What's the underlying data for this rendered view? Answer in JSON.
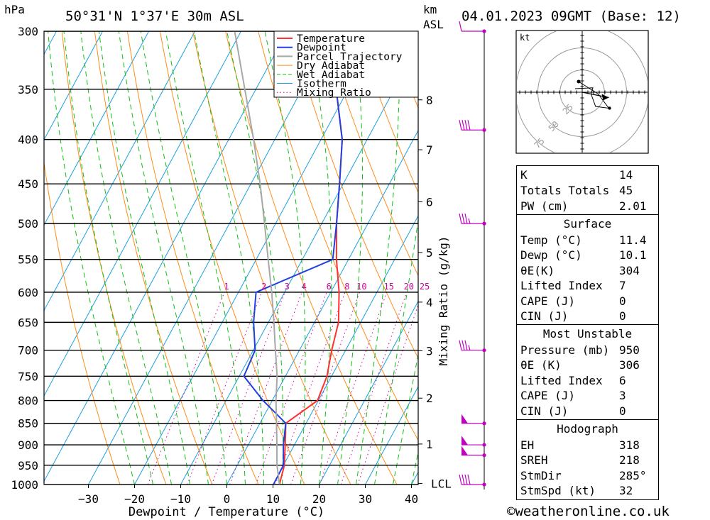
{
  "header": {
    "location": "50°31'N 1°37'E 30m ASL",
    "datetime": "04.01.2023 09GMT (Base: 12)",
    "left_unit": "hPa",
    "right_unit_top": "km",
    "right_unit_bottom": "ASL"
  },
  "footer": {
    "copyright": "©weatheronline.co.uk"
  },
  "chart_data": {
    "type": "line",
    "xlabel": "Dewpoint / Temperature (°C)",
    "ylabel": "hPa",
    "mixing_ratio_label": "Mixing Ratio (g/kg)",
    "x_ticks": [
      -30,
      -20,
      -10,
      0,
      10,
      20,
      30,
      40
    ],
    "pressure_ticks": [
      300,
      350,
      400,
      450,
      500,
      550,
      600,
      650,
      700,
      750,
      800,
      850,
      900,
      950,
      1000
    ],
    "km_ticks": [
      {
        "label": "8",
        "p": 360
      },
      {
        "label": "7",
        "p": 411
      },
      {
        "label": "6",
        "p": 472
      },
      {
        "label": "5",
        "p": 540
      },
      {
        "label": "4",
        "p": 616
      },
      {
        "label": "3",
        "p": 701
      },
      {
        "label": "2",
        "p": 795
      },
      {
        "label": "1",
        "p": 898
      },
      {
        "label": "LCL",
        "p": 997
      }
    ],
    "mixing_ratio_values": [
      1,
      2,
      3,
      4,
      6,
      8,
      10,
      15,
      20,
      25
    ],
    "legend": [
      "Temperature",
      "Dewpoint",
      "Parcel Trajectory",
      "Dry Adiabat",
      "Wet Adiabat",
      "Isotherm",
      "Mixing Ratio"
    ],
    "colors": {
      "temperature": "#ff3030",
      "dewpoint": "#2040e0",
      "parcel": "#a8a8a8",
      "dry_adiabat": "#ff8c1a",
      "wet_adiabat": "#10c010",
      "isotherm": "#1aa0e0",
      "mixing_ratio": "#d000a0",
      "wind_barb": "#c000c0"
    },
    "series": [
      {
        "name": "Temperature",
        "points": [
          [
            1000,
            11.4
          ],
          [
            950,
            10.2
          ],
          [
            900,
            8.0
          ],
          [
            850,
            5.6
          ],
          [
            800,
            9.8
          ],
          [
            750,
            9.0
          ],
          [
            700,
            7.0
          ],
          [
            650,
            5.2
          ],
          [
            600,
            1.8
          ],
          [
            550,
            -2.6
          ],
          [
            500,
            -6.8
          ],
          [
            450,
            -10.8
          ],
          [
            400,
            -15.4
          ],
          [
            350,
            -22.6
          ],
          [
            300,
            -33.8
          ]
        ]
      },
      {
        "name": "Dewpoint",
        "points": [
          [
            1000,
            10.1
          ],
          [
            950,
            10.0
          ],
          [
            900,
            7.6
          ],
          [
            850,
            5.6
          ],
          [
            800,
            -2.0
          ],
          [
            750,
            -9.0
          ],
          [
            700,
            -9.6
          ],
          [
            650,
            -13.2
          ],
          [
            600,
            -16.2
          ],
          [
            550,
            -3.4
          ],
          [
            500,
            -6.8
          ],
          [
            450,
            -10.8
          ],
          [
            400,
            -15.4
          ],
          [
            350,
            -22.6
          ],
          [
            300,
            -33.8
          ]
        ]
      },
      {
        "name": "Parcel Trajectory",
        "points": [
          [
            1000,
            11.4
          ],
          [
            950,
            8.6
          ],
          [
            900,
            6.2
          ],
          [
            850,
            3.6
          ],
          [
            800,
            0.8
          ],
          [
            750,
            -1.8
          ],
          [
            700,
            -5.2
          ],
          [
            650,
            -8.8
          ],
          [
            600,
            -12.8
          ],
          [
            550,
            -17.4
          ],
          [
            500,
            -22.4
          ],
          [
            450,
            -28.0
          ],
          [
            400,
            -34.6
          ],
          [
            350,
            -42.4
          ],
          [
            300,
            -51.4
          ]
        ]
      }
    ],
    "wind_barbs": [
      {
        "p": 300,
        "flags": 0,
        "full": 1,
        "half": 0
      },
      {
        "p": 390,
        "flags": 0,
        "full": 4,
        "half": 0
      },
      {
        "p": 500,
        "flags": 0,
        "full": 3,
        "half": 1
      },
      {
        "p": 700,
        "flags": 0,
        "full": 3,
        "half": 1
      },
      {
        "p": 850,
        "flags": 1,
        "full": 0,
        "half": 0
      },
      {
        "p": 900,
        "flags": 1,
        "full": 0,
        "half": 0
      },
      {
        "p": 925,
        "flags": 1,
        "full": 0,
        "half": 0
      },
      {
        "p": 1000,
        "flags": 0,
        "full": 4,
        "half": 0
      }
    ],
    "hodograph": {
      "unit": "kt",
      "ring_labels": [
        "25",
        "50",
        "75"
      ],
      "trace": [
        [
          -8,
          4
        ],
        [
          12,
          5
        ],
        [
          10,
          -2
        ],
        [
          15,
          -16
        ],
        [
          30,
          -18
        ],
        [
          18,
          -2
        ],
        [
          -4,
          12
        ]
      ],
      "storm_motion": [
        20,
        -2
      ]
    }
  },
  "indices": {
    "rows": [
      {
        "key": "K",
        "value": "14"
      },
      {
        "key": "Totals Totals",
        "value": "45"
      },
      {
        "key": "PW (cm)",
        "value": "2.01"
      }
    ]
  },
  "surface": {
    "title": "Surface",
    "rows": [
      {
        "key": "Temp (°C)",
        "value": "11.4"
      },
      {
        "key": "Dewp (°C)",
        "value": "10.1"
      },
      {
        "key": "θE(K)",
        "value": "304"
      },
      {
        "key": "Lifted Index",
        "value": "7"
      },
      {
        "key": "CAPE (J)",
        "value": "0"
      },
      {
        "key": "CIN (J)",
        "value": "0"
      }
    ]
  },
  "most_unstable": {
    "title": "Most Unstable",
    "rows": [
      {
        "key": "Pressure (mb)",
        "value": "950"
      },
      {
        "key": "θE (K)",
        "value": "306"
      },
      {
        "key": "Lifted Index",
        "value": "6"
      },
      {
        "key": "CAPE (J)",
        "value": "3"
      },
      {
        "key": "CIN (J)",
        "value": "0"
      }
    ]
  },
  "hodograph_table": {
    "title": "Hodograph",
    "rows": [
      {
        "key": "EH",
        "value": "318"
      },
      {
        "key": "SREH",
        "value": "218"
      },
      {
        "key": "StmDir",
        "value": "285°"
      },
      {
        "key": "StmSpd (kt)",
        "value": "32"
      }
    ]
  }
}
